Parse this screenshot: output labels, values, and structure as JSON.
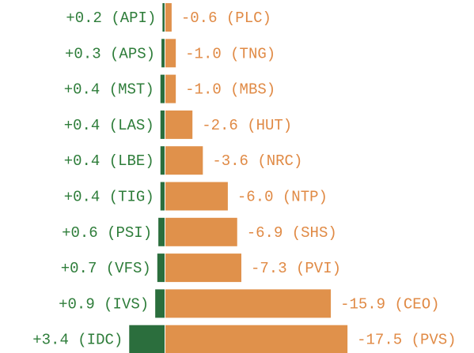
{
  "chart_data": {
    "type": "diverging_bar",
    "series": [
      {
        "color": "#2b6e3d",
        "label_color": "#2e7d3a",
        "values": [
          0.2,
          0.3,
          0.4,
          0.4,
          0.4,
          0.4,
          0.6,
          0.7,
          0.9,
          3.4
        ],
        "value_labels": [
          "+0.2 (API)",
          "+0.3 (APS)",
          "+0.4 (MST)",
          "+0.4 (LAS)",
          "+0.4 (LBE)",
          "+0.4 (TIG)",
          "+0.6 (PSI)",
          "+0.7 (VFS)",
          "+0.9 (IVS)",
          "+3.4 (IDC)"
        ]
      },
      {
        "color": "#e0914b",
        "label_color": "#e08a45",
        "values": [
          -0.6,
          -1.0,
          -1.0,
          -2.6,
          -3.6,
          -6.0,
          -6.9,
          -7.3,
          -15.9,
          -17.5
        ],
        "value_labels": [
          "-0.6 (PLC)",
          "-1.0 (TNG)",
          "-1.0 (MBS)",
          "-2.6 (HUT)",
          "-3.6 (NRC)",
          "-6.0 (NTP)",
          "-6.9 (SHS)",
          "-7.3 (PVI)",
          "-15.9 (CEO)",
          "-17.5 (PVS)"
        ]
      }
    ]
  }
}
